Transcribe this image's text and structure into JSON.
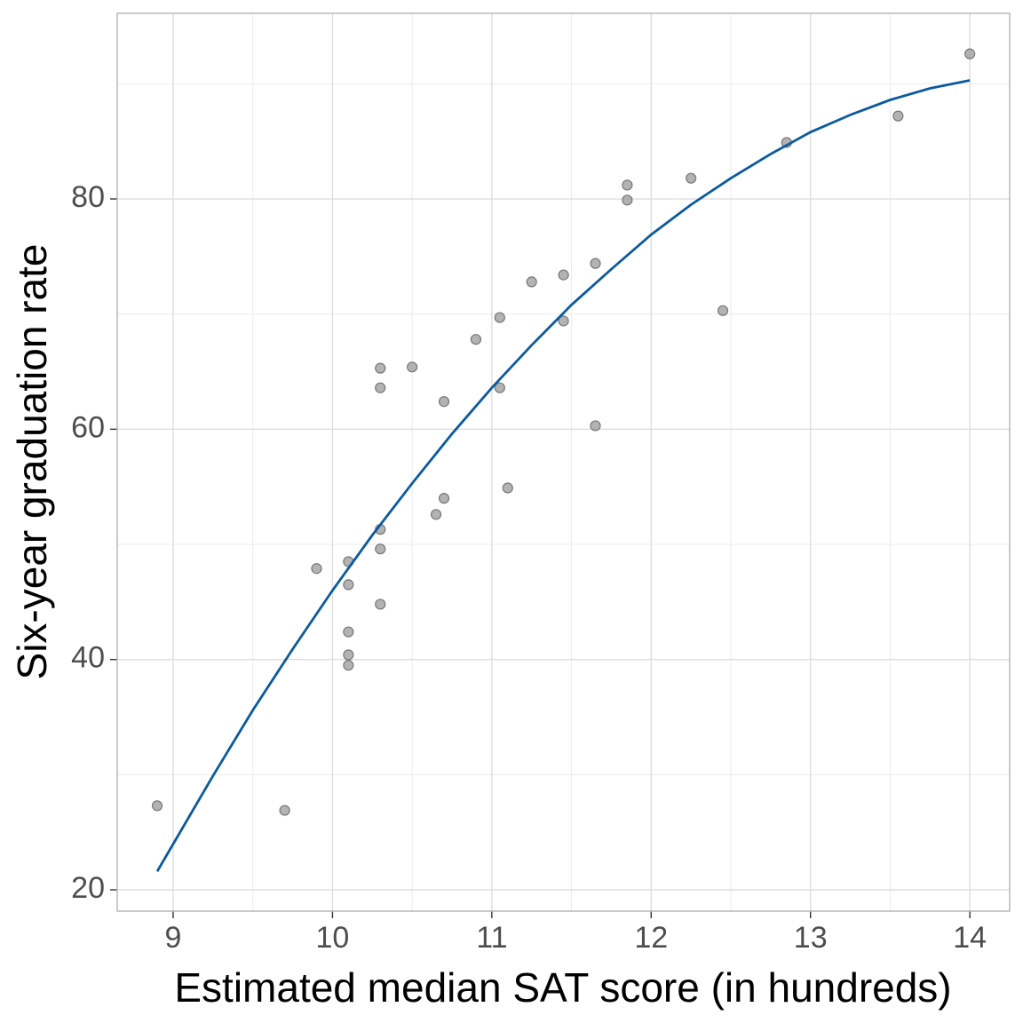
{
  "chart_data": {
    "type": "scatter",
    "x_label": "Estimated median SAT score (in hundreds)",
    "y_label": "Six-year graduation rate",
    "xlim": [
      8.649,
      14.25
    ],
    "ylim": [
      18.15,
      96.12
    ],
    "xticks": [
      9,
      10,
      11,
      12,
      13,
      14
    ],
    "yticks": [
      20,
      40,
      60,
      80
    ],
    "xminorticks": [
      9.5,
      10.5,
      11.5,
      12.5,
      13.5
    ],
    "yminorticks": [
      30,
      50,
      70,
      90
    ],
    "grid": true,
    "series": [
      {
        "type": "scatter",
        "color": "#999999",
        "x": [
          8.9,
          9.7,
          9.9,
          10.1,
          10.1,
          10.1,
          10.1,
          10.1,
          10.3,
          10.3,
          10.3,
          10.3,
          10.3,
          10.5,
          10.65,
          10.7,
          10.7,
          10.9,
          11.05,
          11.05,
          11.1,
          11.25,
          11.45,
          11.45,
          11.65,
          11.65,
          11.85,
          11.85,
          12.25,
          12.45,
          12.85,
          13.55,
          14.0
        ],
        "values": [
          27.3,
          26.9,
          47.9,
          48.5,
          46.5,
          42.4,
          40.4,
          39.5,
          65.3,
          63.6,
          51.3,
          49.6,
          44.8,
          65.4,
          52.6,
          62.4,
          54.0,
          67.8,
          69.7,
          63.6,
          54.9,
          72.8,
          73.4,
          69.4,
          74.4,
          60.3,
          81.2,
          79.9,
          81.8,
          70.3,
          84.9,
          87.2,
          92.6
        ]
      },
      {
        "type": "line",
        "color": "#0b5a9e",
        "x": [
          8.9,
          9.25,
          9.5,
          9.75,
          10,
          10.25,
          10.5,
          10.75,
          11,
          11.25,
          11.5,
          11.75,
          12,
          12.25,
          12.5,
          12.75,
          13,
          13.25,
          13.5,
          13.75,
          14
        ],
        "values": [
          21.6,
          29.9,
          35.6,
          40.9,
          46.0,
          50.8,
          55.3,
          59.6,
          63.6,
          67.3,
          70.8,
          73.9,
          76.9,
          79.5,
          81.8,
          83.9,
          85.8,
          87.3,
          88.6,
          89.6,
          90.3
        ]
      }
    ]
  }
}
